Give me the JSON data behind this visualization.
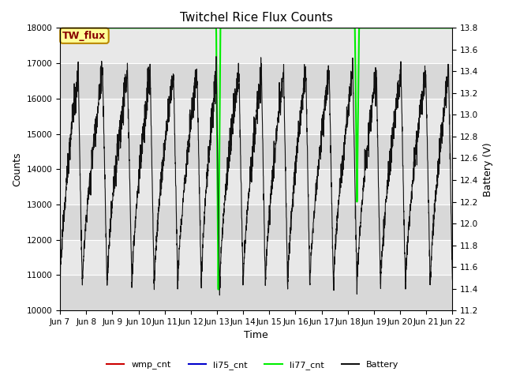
{
  "title": "Twitchel Rice Flux Counts",
  "ylabel_left": "Counts",
  "ylabel_right": "Battery (V)",
  "xlabel": "Time",
  "ylim_left": [
    10000,
    18000
  ],
  "ylim_right": [
    11.2,
    13.8
  ],
  "background_color": "#ffffff",
  "plot_bg_color": "#e0e0e0",
  "grid_color": "#ffffff",
  "annotation_box": {
    "text": "TW_flux",
    "facecolor": "#ffff99",
    "edgecolor": "#bb8800"
  },
  "x_tick_labels": [
    "Jun 7",
    "Jun 8",
    "Jun 9",
    "Jun 10",
    "Jun 11",
    "Jun 12",
    "Jun 13",
    "Jun 14",
    "Jun 15",
    "Jun 16",
    "Jun 17",
    "Jun 18",
    "Jun 19",
    "Jun 20",
    "Jun 21",
    "Jun 22"
  ],
  "legend_labels": [
    "wmp_cnt",
    "li75_cnt",
    "li77_cnt",
    "Battery"
  ],
  "legend_colors": [
    "#cc0000",
    "#0000cc",
    "#00ee00",
    "#111111"
  ],
  "yticks_left": [
    10000,
    11000,
    12000,
    13000,
    14000,
    15000,
    16000,
    17000,
    18000
  ],
  "yticks_right": [
    11.2,
    11.4,
    11.6,
    11.8,
    12.0,
    12.2,
    12.4,
    12.6,
    12.8,
    13.0,
    13.2,
    13.4,
    13.6,
    13.8
  ],
  "xlim": [
    7,
    22
  ],
  "x_ticks": [
    7,
    8,
    9,
    10,
    11,
    12,
    13,
    14,
    15,
    16,
    17,
    18,
    19,
    20,
    21,
    22
  ],
  "li77_flat": 18000,
  "li77_color": "#00ee00",
  "battery_color": "#111111",
  "wmp_color": "#cc0000",
  "li75_color": "#0000cc",
  "title_fontsize": 11,
  "axis_fontsize": 9,
  "tick_fontsize": 7.5,
  "legend_fontsize": 8
}
